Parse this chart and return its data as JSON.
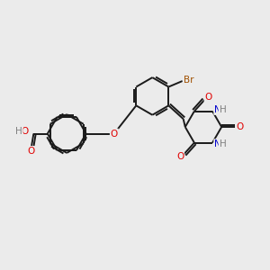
{
  "background_color": "#ebebeb",
  "bond_color": "#1a1a1a",
  "bond_width": 1.4,
  "atom_colors": {
    "O": "#e00000",
    "N": "#0000cc",
    "Br": "#a05000",
    "H": "#808080",
    "C": "#1a1a1a"
  },
  "font_size": 7.5,
  "figsize": [
    3.0,
    3.0
  ],
  "dpi": 100
}
